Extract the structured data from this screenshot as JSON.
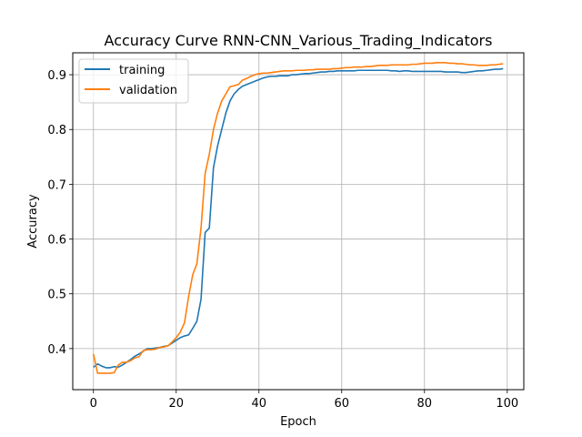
{
  "chart_data": {
    "type": "line",
    "title": "Accuracy Curve RNN-CNN_Various_Trading_Indicators",
    "xlabel": "Epoch",
    "ylabel": "Accuracy",
    "xlim": [
      -5,
      104
    ],
    "ylim": [
      0.325,
      0.94
    ],
    "xticks": [
      0,
      20,
      40,
      60,
      80,
      100
    ],
    "yticks": [
      0.4,
      0.5,
      0.6,
      0.7,
      0.8,
      0.9
    ],
    "grid": true,
    "legend_position": "top-left",
    "x": [
      0,
      1,
      2,
      3,
      4,
      5,
      6,
      7,
      8,
      9,
      10,
      11,
      12,
      13,
      14,
      15,
      16,
      17,
      18,
      19,
      20,
      21,
      22,
      23,
      24,
      25,
      26,
      27,
      28,
      29,
      30,
      31,
      32,
      33,
      34,
      35,
      36,
      37,
      38,
      39,
      40,
      41,
      42,
      43,
      44,
      45,
      46,
      47,
      48,
      49,
      50,
      51,
      52,
      53,
      54,
      55,
      56,
      57,
      58,
      59,
      60,
      61,
      62,
      63,
      64,
      65,
      66,
      67,
      68,
      69,
      70,
      71,
      72,
      73,
      74,
      75,
      76,
      77,
      78,
      79,
      80,
      81,
      82,
      83,
      84,
      85,
      86,
      87,
      88,
      89,
      90,
      91,
      92,
      93,
      94,
      95,
      96,
      97,
      98,
      99
    ],
    "series": [
      {
        "name": "training",
        "color": "#1f77b4",
        "values": [
          0.366,
          0.372,
          0.368,
          0.365,
          0.365,
          0.367,
          0.366,
          0.37,
          0.375,
          0.38,
          0.386,
          0.39,
          0.395,
          0.4,
          0.4,
          0.401,
          0.402,
          0.404,
          0.405,
          0.41,
          0.415,
          0.42,
          0.423,
          0.425,
          0.437,
          0.45,
          0.49,
          0.612,
          0.62,
          0.73,
          0.77,
          0.8,
          0.83,
          0.852,
          0.865,
          0.873,
          0.879,
          0.882,
          0.885,
          0.888,
          0.891,
          0.894,
          0.896,
          0.897,
          0.897,
          0.898,
          0.898,
          0.898,
          0.9,
          0.9,
          0.901,
          0.902,
          0.902,
          0.903,
          0.904,
          0.905,
          0.905,
          0.906,
          0.906,
          0.907,
          0.907,
          0.907,
          0.907,
          0.907,
          0.908,
          0.908,
          0.908,
          0.908,
          0.908,
          0.908,
          0.908,
          0.908,
          0.907,
          0.907,
          0.906,
          0.907,
          0.907,
          0.906,
          0.906,
          0.906,
          0.906,
          0.906,
          0.906,
          0.906,
          0.906,
          0.905,
          0.905,
          0.905,
          0.905,
          0.904,
          0.904,
          0.905,
          0.906,
          0.907,
          0.907,
          0.908,
          0.909,
          0.91,
          0.91,
          0.911
        ]
      },
      {
        "name": "validation",
        "color": "#ff7f0e",
        "values": [
          0.39,
          0.355,
          0.355,
          0.355,
          0.355,
          0.356,
          0.37,
          0.375,
          0.375,
          0.378,
          0.383,
          0.385,
          0.396,
          0.398,
          0.398,
          0.399,
          0.402,
          0.403,
          0.405,
          0.412,
          0.42,
          0.43,
          0.447,
          0.495,
          0.535,
          0.555,
          0.62,
          0.72,
          0.755,
          0.8,
          0.83,
          0.852,
          0.865,
          0.878,
          0.88,
          0.882,
          0.89,
          0.893,
          0.897,
          0.9,
          0.902,
          0.903,
          0.903,
          0.904,
          0.905,
          0.906,
          0.907,
          0.907,
          0.907,
          0.908,
          0.908,
          0.908,
          0.909,
          0.909,
          0.91,
          0.91,
          0.91,
          0.91,
          0.911,
          0.911,
          0.912,
          0.913,
          0.913,
          0.914,
          0.914,
          0.914,
          0.915,
          0.915,
          0.916,
          0.917,
          0.917,
          0.917,
          0.918,
          0.918,
          0.918,
          0.918,
          0.918,
          0.919,
          0.919,
          0.92,
          0.921,
          0.921,
          0.921,
          0.922,
          0.922,
          0.922,
          0.921,
          0.921,
          0.92,
          0.92,
          0.919,
          0.918,
          0.918,
          0.917,
          0.917,
          0.917,
          0.918,
          0.918,
          0.919,
          0.92
        ]
      }
    ]
  }
}
